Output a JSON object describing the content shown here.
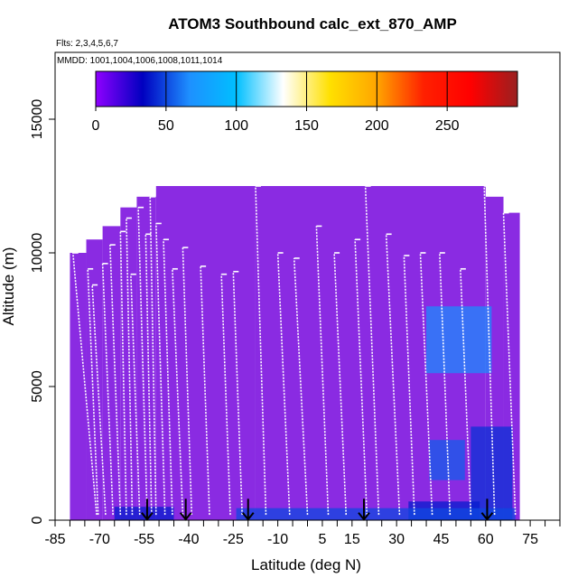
{
  "chart_data": {
    "type": "heatmap",
    "title": "ATOM3 Southbound calc_ext_870_AMP",
    "flights_label": "Flts: 2,3,4,5,6,7",
    "mmdd_label": "MMDD: 1001,1004,1006,1008,1011,1014",
    "xlabel": "Latitude (deg N)",
    "ylabel": "Altitude (m)",
    "xlim": [
      -85,
      85
    ],
    "ylim": [
      0,
      17500
    ],
    "x_ticks": [
      -85,
      -70,
      -55,
      -40,
      -25,
      -10,
      5,
      15,
      30,
      45,
      60,
      75
    ],
    "x_minor_ticks": [
      -80,
      -75,
      -65,
      -60,
      -50,
      -45,
      -35,
      -30,
      -20,
      -15,
      -5,
      0,
      10,
      20,
      25,
      35,
      40,
      50,
      55,
      65,
      70,
      80,
      85
    ],
    "y_ticks": [
      0,
      5000,
      10000,
      15000
    ],
    "colorbar": {
      "range": [
        0,
        300
      ],
      "ticks": [
        0,
        50,
        100,
        150,
        200,
        250
      ],
      "stops": [
        "#8f00ff",
        "#0000c0",
        "#1e90ff",
        "#00bfff",
        "#ffffff",
        "#ffe000",
        "#ffa500",
        "#ff2000",
        "#ff0000",
        "#9a2020"
      ]
    },
    "background_color": "#8a2be2",
    "curtain_segments": [
      {
        "x0": -80.0,
        "x1": -74.5,
        "top": 10000
      },
      {
        "x0": -74.5,
        "x1": -69.0,
        "top": 10500
      },
      {
        "x0": -69.0,
        "x1": -63.0,
        "top": 11000
      },
      {
        "x0": -63.0,
        "x1": -57.5,
        "top": 11700
      },
      {
        "x0": -57.5,
        "x1": -51.0,
        "top": 12100
      },
      {
        "x0": -51.0,
        "x1": -17.5,
        "top": 12500
      },
      {
        "x0": -17.5,
        "x1": 60.0,
        "top": 12500
      },
      {
        "x0": 60.0,
        "x1": 66.0,
        "top": 12100
      },
      {
        "x0": 66.0,
        "x1": 71.5,
        "top": 11500
      }
    ],
    "profiles": [
      {
        "x_bottom": -71.0,
        "x_top": -79.0,
        "top": 10000
      },
      {
        "x_bottom": -70.5,
        "x_top": -74.0,
        "top": 9400
      },
      {
        "x_bottom": -68.0,
        "x_top": -72.5,
        "top": 8800
      },
      {
        "x_bottom": -65.5,
        "x_top": -69.0,
        "top": 9600
      },
      {
        "x_bottom": -63.0,
        "x_top": -66.5,
        "top": 10300
      },
      {
        "x_bottom": -61.0,
        "x_top": -63.0,
        "top": 10800
      },
      {
        "x_bottom": -59.0,
        "x_top": -61.0,
        "top": 11300
      },
      {
        "x_bottom": -56.5,
        "x_top": -59.5,
        "top": 9200
      },
      {
        "x_bottom": -54.0,
        "x_top": -57.0,
        "top": 11700
      },
      {
        "x_bottom": -52.5,
        "x_top": -54.5,
        "top": 10700
      },
      {
        "x_bottom": -51.0,
        "x_top": -53.0,
        "top": 12100
      },
      {
        "x_bottom": -48.0,
        "x_top": -51.0,
        "top": 11100
      },
      {
        "x_bottom": -45.5,
        "x_top": -48.5,
        "top": 10500
      },
      {
        "x_bottom": -42.0,
        "x_top": -45.5,
        "top": 9400
      },
      {
        "x_bottom": -39.0,
        "x_top": -42.0,
        "top": 10200
      },
      {
        "x_bottom": -33.0,
        "x_top": -36.0,
        "top": 9500
      },
      {
        "x_bottom": -26.0,
        "x_top": -29.0,
        "top": 9200
      },
      {
        "x_bottom": -22.0,
        "x_top": -25.0,
        "top": 9300
      },
      {
        "x_bottom": -14.0,
        "x_top": -17.5,
        "top": 12500
      },
      {
        "x_bottom": -6.0,
        "x_top": -10.0,
        "top": 10000
      },
      {
        "x_bottom": 0.0,
        "x_top": -4.5,
        "top": 9800
      },
      {
        "x_bottom": 7.0,
        "x_top": 3.0,
        "top": 11000
      },
      {
        "x_bottom": 13.0,
        "x_top": 9.0,
        "top": 10000
      },
      {
        "x_bottom": 20.0,
        "x_top": 16.0,
        "top": 10500
      },
      {
        "x_bottom": 24.0,
        "x_top": 19.5,
        "top": 12500
      },
      {
        "x_bottom": 31.0,
        "x_top": 26.5,
        "top": 10700
      },
      {
        "x_bottom": 36.0,
        "x_top": 32.5,
        "top": 9900
      },
      {
        "x_bottom": 42.0,
        "x_top": 38.0,
        "top": 10000
      },
      {
        "x_bottom": 48.0,
        "x_top": 44.5,
        "top": 10000
      },
      {
        "x_bottom": 55.0,
        "x_top": 51.5,
        "top": 9400
      },
      {
        "x_bottom": 63.0,
        "x_top": 59.5,
        "top": 12500
      },
      {
        "x_bottom": 70.0,
        "x_top": 66.0,
        "top": 11500
      }
    ],
    "dark_patches": [
      {
        "x0": 55,
        "x1": 69,
        "y0": 0,
        "y1": 3500,
        "v": 45
      },
      {
        "x0": 41,
        "x1": 53,
        "y0": 1500,
        "y1": 3000,
        "v": 55
      },
      {
        "x0": 34,
        "x1": 58,
        "y0": 0,
        "y1": 700,
        "v": 40
      },
      {
        "x0": 40,
        "x1": 62,
        "y0": 5500,
        "y1": 8000,
        "v": 65
      },
      {
        "x0": -24,
        "x1": 70,
        "y0": 0,
        "y1": 450,
        "v": 50
      },
      {
        "x0": -65,
        "x1": -45,
        "y0": 0,
        "y1": 500,
        "v": 40
      }
    ],
    "markers": [
      -54,
      -41,
      -20,
      19,
      60.5
    ]
  }
}
